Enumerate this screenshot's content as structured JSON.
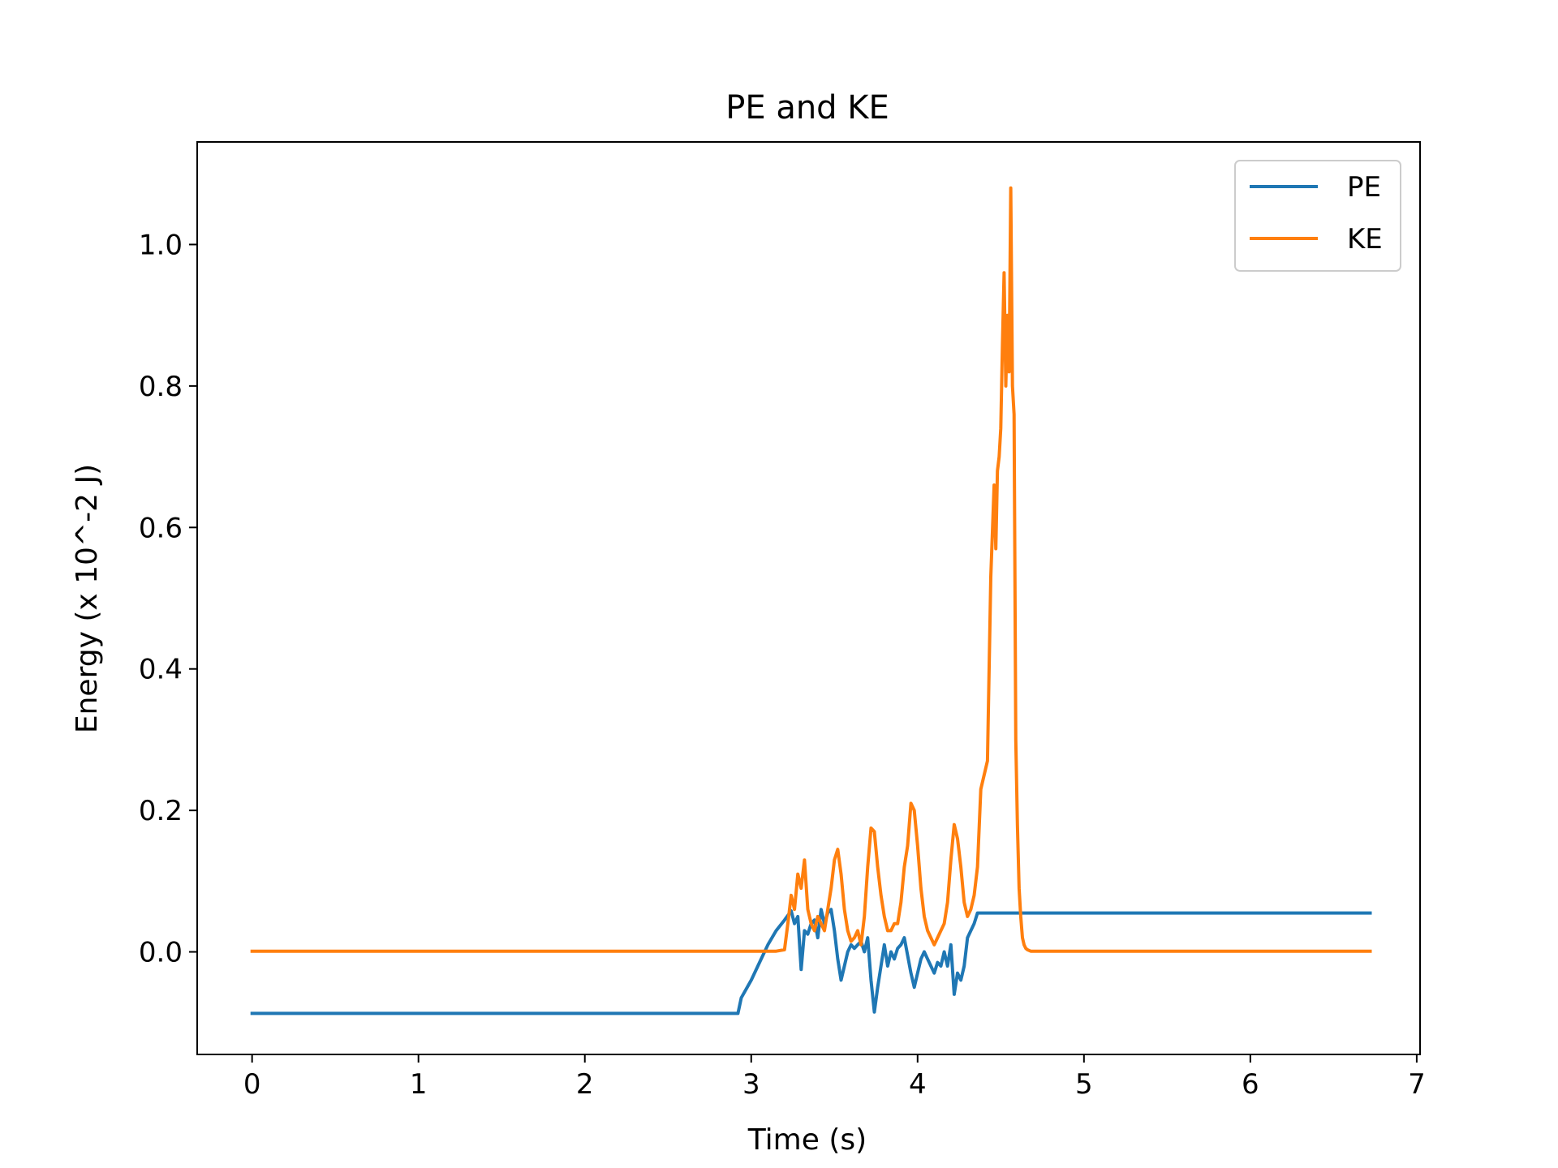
{
  "chart_data": {
    "type": "line",
    "title": "PE and KE",
    "xlabel": "Time (s)",
    "ylabel": "Energy (x 10^-2 J)",
    "xlim": [
      -0.33,
      7.02
    ],
    "ylim": [
      -0.145,
      1.145
    ],
    "xticks": [
      0,
      1,
      2,
      3,
      4,
      5,
      6,
      7
    ],
    "xtick_labels": [
      "0",
      "1",
      "2",
      "3",
      "4",
      "5",
      "6",
      "7"
    ],
    "yticks": [
      0.0,
      0.2,
      0.4,
      0.6,
      0.8,
      1.0
    ],
    "ytick_labels": [
      "0.0",
      "0.2",
      "0.4",
      "0.6",
      "0.8",
      "1.0"
    ],
    "grid": false,
    "legend_position": "top-right",
    "series": [
      {
        "name": "PE",
        "color": "#1f77b4",
        "x": [
          0.0,
          2.5,
          2.92,
          2.94,
          3.0,
          3.05,
          3.1,
          3.15,
          3.2,
          3.24,
          3.26,
          3.28,
          3.3,
          3.32,
          3.34,
          3.36,
          3.38,
          3.4,
          3.42,
          3.44,
          3.46,
          3.48,
          3.5,
          3.52,
          3.54,
          3.56,
          3.58,
          3.6,
          3.62,
          3.64,
          3.66,
          3.68,
          3.7,
          3.72,
          3.74,
          3.76,
          3.78,
          3.8,
          3.82,
          3.84,
          3.86,
          3.88,
          3.9,
          3.92,
          3.94,
          3.96,
          3.98,
          4.0,
          4.02,
          4.04,
          4.06,
          4.08,
          4.1,
          4.12,
          4.14,
          4.16,
          4.18,
          4.2,
          4.22,
          4.24,
          4.26,
          4.28,
          4.3,
          4.32,
          4.34,
          4.36,
          4.38,
          5.0,
          6.0,
          6.72
        ],
        "y": [
          -0.087,
          -0.087,
          -0.087,
          -0.065,
          -0.04,
          -0.015,
          0.01,
          0.03,
          0.045,
          0.058,
          0.04,
          0.05,
          -0.025,
          0.03,
          0.025,
          0.04,
          0.045,
          0.02,
          0.06,
          0.04,
          0.055,
          0.06,
          0.03,
          -0.01,
          -0.04,
          -0.02,
          0.0,
          0.01,
          0.005,
          0.01,
          0.015,
          0.0,
          0.02,
          -0.04,
          -0.085,
          -0.05,
          -0.02,
          0.01,
          -0.02,
          0.0,
          -0.01,
          0.005,
          0.01,
          0.02,
          -0.005,
          -0.03,
          -0.05,
          -0.03,
          -0.01,
          0.0,
          -0.01,
          -0.02,
          -0.03,
          -0.015,
          -0.02,
          0.0,
          -0.02,
          0.01,
          -0.06,
          -0.03,
          -0.04,
          -0.02,
          0.02,
          0.03,
          0.04,
          0.055,
          0.055,
          0.055,
          0.055,
          0.055
        ]
      },
      {
        "name": "KE",
        "color": "#ff7f0e",
        "x": [
          0.0,
          1.0,
          2.0,
          3.0,
          3.15,
          3.2,
          3.22,
          3.24,
          3.26,
          3.28,
          3.3,
          3.32,
          3.34,
          3.36,
          3.38,
          3.4,
          3.42,
          3.44,
          3.46,
          3.48,
          3.5,
          3.52,
          3.54,
          3.56,
          3.58,
          3.6,
          3.62,
          3.64,
          3.66,
          3.68,
          3.7,
          3.72,
          3.74,
          3.76,
          3.78,
          3.8,
          3.82,
          3.84,
          3.86,
          3.88,
          3.9,
          3.92,
          3.94,
          3.96,
          3.98,
          4.0,
          4.02,
          4.04,
          4.06,
          4.08,
          4.1,
          4.12,
          4.14,
          4.16,
          4.18,
          4.2,
          4.22,
          4.24,
          4.26,
          4.28,
          4.3,
          4.32,
          4.34,
          4.36,
          4.38,
          4.4,
          4.42,
          4.44,
          4.46,
          4.47,
          4.48,
          4.49,
          4.5,
          4.51,
          4.52,
          4.53,
          4.54,
          4.55,
          4.56,
          4.57,
          4.58,
          4.59,
          4.6,
          4.61,
          4.62,
          4.63,
          4.64,
          4.65,
          4.66,
          4.67,
          4.68,
          4.7,
          4.75,
          5.0,
          6.0,
          6.72
        ],
        "y": [
          0.001,
          0.001,
          0.001,
          0.001,
          0.001,
          0.003,
          0.04,
          0.08,
          0.06,
          0.11,
          0.09,
          0.13,
          0.06,
          0.04,
          0.03,
          0.05,
          0.04,
          0.03,
          0.06,
          0.09,
          0.13,
          0.145,
          0.11,
          0.06,
          0.03,
          0.015,
          0.02,
          0.03,
          0.01,
          0.05,
          0.12,
          0.175,
          0.17,
          0.12,
          0.08,
          0.05,
          0.03,
          0.03,
          0.04,
          0.04,
          0.07,
          0.12,
          0.15,
          0.21,
          0.2,
          0.15,
          0.09,
          0.05,
          0.03,
          0.02,
          0.01,
          0.02,
          0.03,
          0.04,
          0.07,
          0.13,
          0.18,
          0.16,
          0.12,
          0.07,
          0.05,
          0.06,
          0.08,
          0.12,
          0.23,
          0.25,
          0.27,
          0.53,
          0.66,
          0.57,
          0.68,
          0.7,
          0.74,
          0.86,
          0.96,
          0.8,
          0.9,
          0.82,
          1.08,
          0.8,
          0.76,
          0.3,
          0.18,
          0.09,
          0.05,
          0.02,
          0.01,
          0.005,
          0.003,
          0.002,
          0.001,
          0.001,
          0.001,
          0.001,
          0.001,
          0.001
        ]
      }
    ]
  }
}
